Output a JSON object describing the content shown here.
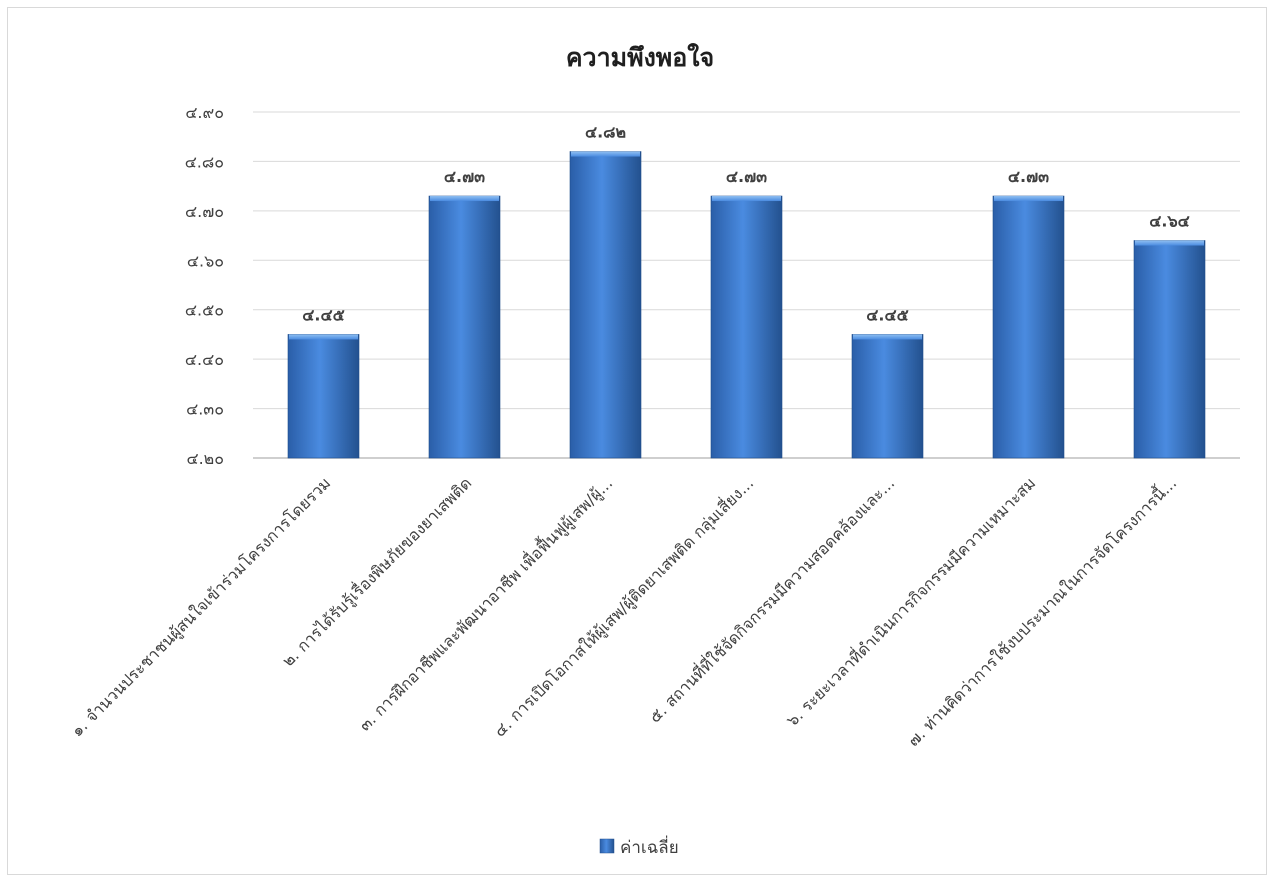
{
  "chart_data": {
    "type": "bar",
    "title": "ความพึงพอใจ",
    "xlabel": "",
    "ylabel": "",
    "ylim": [
      4.2,
      4.9
    ],
    "grid": true,
    "legend_position": "bottom",
    "yticks": [
      4.2,
      4.3,
      4.4,
      4.5,
      4.6,
      4.7,
      4.8,
      4.9
    ],
    "ytick_labels": [
      "๔.๒๐",
      "๔.๓๐",
      "๔.๔๐",
      "๔.๕๐",
      "๔.๖๐",
      "๔.๗๐",
      "๔.๘๐",
      "๔.๙๐"
    ],
    "categories": [
      "๑. จำนวนประชาชนผู้สนใจเข้าร่วมโครงการโดยรวม",
      "๒. การได้รับรู้เรื่องพิษภัยของยาเสพติด",
      "๓. การฝึกอาชีพและพัฒนาอาชีพ เพื่อฟื้นฟูผู้เสพ/ผู้...",
      "๔. การเปิดโอกาสให้ผู้เสพ/ผู้ติดยาเสพติด กลุ่มเสี่ยง...",
      "๕. สถานที่ที่ใช้จัดกิจกรรมมีความสอดคล้องและ...",
      "๖. ระยะเวลาที่ดำเนินการกิจกรรมมีความเหมาะสม",
      "๗. ท่านคิดว่าการใช้งบประมาณในการจัดโครงการนี้..."
    ],
    "series": [
      {
        "name": "ค่าเฉลี่ย",
        "color": "#3a78c9",
        "values": [
          4.45,
          4.73,
          4.82,
          4.73,
          4.45,
          4.73,
          4.64
        ],
        "value_labels": [
          "๔.๔๕",
          "๔.๗๓",
          "๔.๘๒",
          "๔.๗๓",
          "๔.๔๕",
          "๔.๗๓",
          "๔.๖๔"
        ]
      }
    ]
  }
}
